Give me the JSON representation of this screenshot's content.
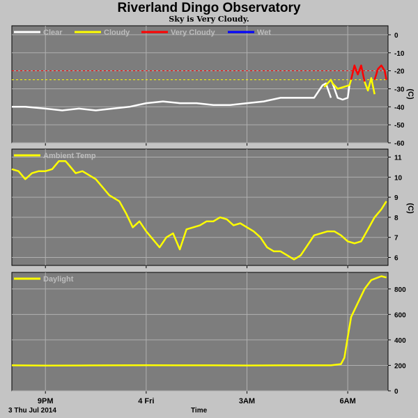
{
  "header": {
    "title": "Riverland Dingo Observatory",
    "subtitle": "Sky is Very Cloudy."
  },
  "footer": {
    "date_label": "3 Thu Jul 2014",
    "time_label": "Time"
  },
  "chart_data": [
    {
      "type": "line",
      "id": "sky",
      "ylim": [
        -60,
        5
      ],
      "yticks": [
        0,
        -10,
        -20,
        -30,
        -40,
        -50,
        -60
      ],
      "ylabel": "(C)",
      "legend": [
        {
          "name": "Clear",
          "color": "#ffffff"
        },
        {
          "name": "Cloudy",
          "color": "#ffff00"
        },
        {
          "name": "Very Cloudy",
          "color": "#ff0000"
        },
        {
          "name": "Wet",
          "color": "#0000ff"
        }
      ],
      "thresholds": [
        {
          "value": -20,
          "color": "#ff0000"
        },
        {
          "value": -25,
          "color": "#ffff00"
        }
      ],
      "series": [
        {
          "color": "#ffffff",
          "x": [
            0,
            0.4,
            1,
            1.5,
            2,
            2.5,
            3,
            3.5,
            4,
            4.5,
            5,
            5.5,
            6,
            6.5,
            7,
            7.5,
            8,
            8.5,
            9,
            9.25,
            9.35,
            9.5
          ],
          "y": [
            -40,
            -40,
            -41,
            -42,
            -41,
            -42,
            -41,
            -40,
            -38,
            -37,
            -38,
            -38,
            -39,
            -39,
            -38,
            -37,
            -35,
            -35,
            -35,
            -28,
            -27,
            -35
          ]
        },
        {
          "color": "#ffffff",
          "x": [
            9.55,
            9.7,
            9.85,
            10,
            10.05
          ],
          "y": [
            -27,
            -35,
            -36,
            -35,
            -28
          ]
        },
        {
          "color": "#ffff00",
          "x": [
            9.3,
            9.5,
            9.55,
            9.7,
            10.05,
            10.1
          ],
          "y": [
            -29,
            -25,
            -27,
            -30,
            -28,
            -25
          ]
        },
        {
          "color": "#ff0000",
          "x": [
            10.1,
            10.2,
            10.3,
            10.4,
            10.5
          ],
          "y": [
            -25,
            -17,
            -22,
            -17,
            -26
          ]
        },
        {
          "color": "#ffff00",
          "x": [
            10.5,
            10.6,
            10.7,
            10.8
          ],
          "y": [
            -26,
            -31,
            -24,
            -33
          ]
        },
        {
          "color": "#ff0000",
          "x": [
            10.8,
            10.9,
            11,
            11.1,
            11.15
          ],
          "y": [
            -25,
            -19,
            -17,
            -20,
            -25
          ]
        }
      ]
    },
    {
      "type": "line",
      "id": "ambient",
      "ylim": [
        5.6,
        11.4
      ],
      "yticks": [
        11,
        10,
        9,
        8,
        7,
        6
      ],
      "ylabel": "(C)",
      "legend": [
        {
          "name": "Ambient Temp",
          "color": "#ffff00"
        }
      ],
      "series": [
        {
          "color": "#ffff00",
          "x": [
            0,
            0.2,
            0.4,
            0.6,
            0.8,
            1,
            1.2,
            1.4,
            1.6,
            1.7,
            1.9,
            2.1,
            2.3,
            2.5,
            2.7,
            2.9,
            3,
            3.2,
            3.4,
            3.6,
            3.8,
            4,
            4.2,
            4.4,
            4.6,
            4.8,
            5,
            5.2,
            5.4,
            5.6,
            5.8,
            6,
            6.2,
            6.4,
            6.6,
            6.8,
            7,
            7.2,
            7.4,
            7.6,
            7.8,
            8,
            8.2,
            8.4,
            8.6,
            8.8,
            9,
            9.2,
            9.4,
            9.6,
            9.8,
            10,
            10.2,
            10.4,
            10.6,
            10.8,
            11,
            11.15
          ],
          "y": [
            10.4,
            10.3,
            9.9,
            10.2,
            10.3,
            10.3,
            10.4,
            10.8,
            10.8,
            10.6,
            10.2,
            10.3,
            10.1,
            9.9,
            9.5,
            9.1,
            9,
            8.8,
            8.2,
            7.5,
            7.8,
            7.3,
            6.9,
            6.5,
            7,
            7.2,
            6.4,
            7.4,
            7.5,
            7.6,
            7.8,
            7.8,
            8,
            7.9,
            7.6,
            7.7,
            7.5,
            7.3,
            7,
            6.5,
            6.3,
            6.3,
            6.1,
            5.9,
            6.1,
            6.6,
            7.1,
            7.2,
            7.3,
            7.3,
            7.1,
            6.8,
            6.7,
            6.8,
            7.4,
            8,
            8.4,
            8.8
          ]
        }
      ]
    },
    {
      "type": "line",
      "id": "daylight",
      "ylim": [
        0,
        930
      ],
      "yticks": [
        800,
        600,
        400,
        200,
        0
      ],
      "legend": [
        {
          "name": "Daylight",
          "color": "#ffff00"
        }
      ],
      "series": [
        {
          "color": "#ffff00",
          "x": [
            0,
            1,
            2,
            3,
            4,
            5,
            6,
            7,
            8,
            9,
            9.5,
            9.8,
            9.9,
            10,
            10.1,
            10.3,
            10.5,
            10.7,
            10.9,
            11,
            11.15
          ],
          "y": [
            200,
            198,
            199,
            200,
            201,
            200,
            200,
            199,
            200,
            200,
            200,
            210,
            260,
            420,
            580,
            690,
            800,
            870,
            890,
            900,
            890
          ]
        }
      ]
    }
  ],
  "x_axis": {
    "ticks": [
      {
        "label": "9PM",
        "pos": 1
      },
      {
        "label": "4 Fri",
        "pos": 4
      },
      {
        "label": "3AM",
        "pos": 7
      },
      {
        "label": "6AM",
        "pos": 10
      }
    ],
    "xlim": [
      0,
      11.2
    ]
  }
}
